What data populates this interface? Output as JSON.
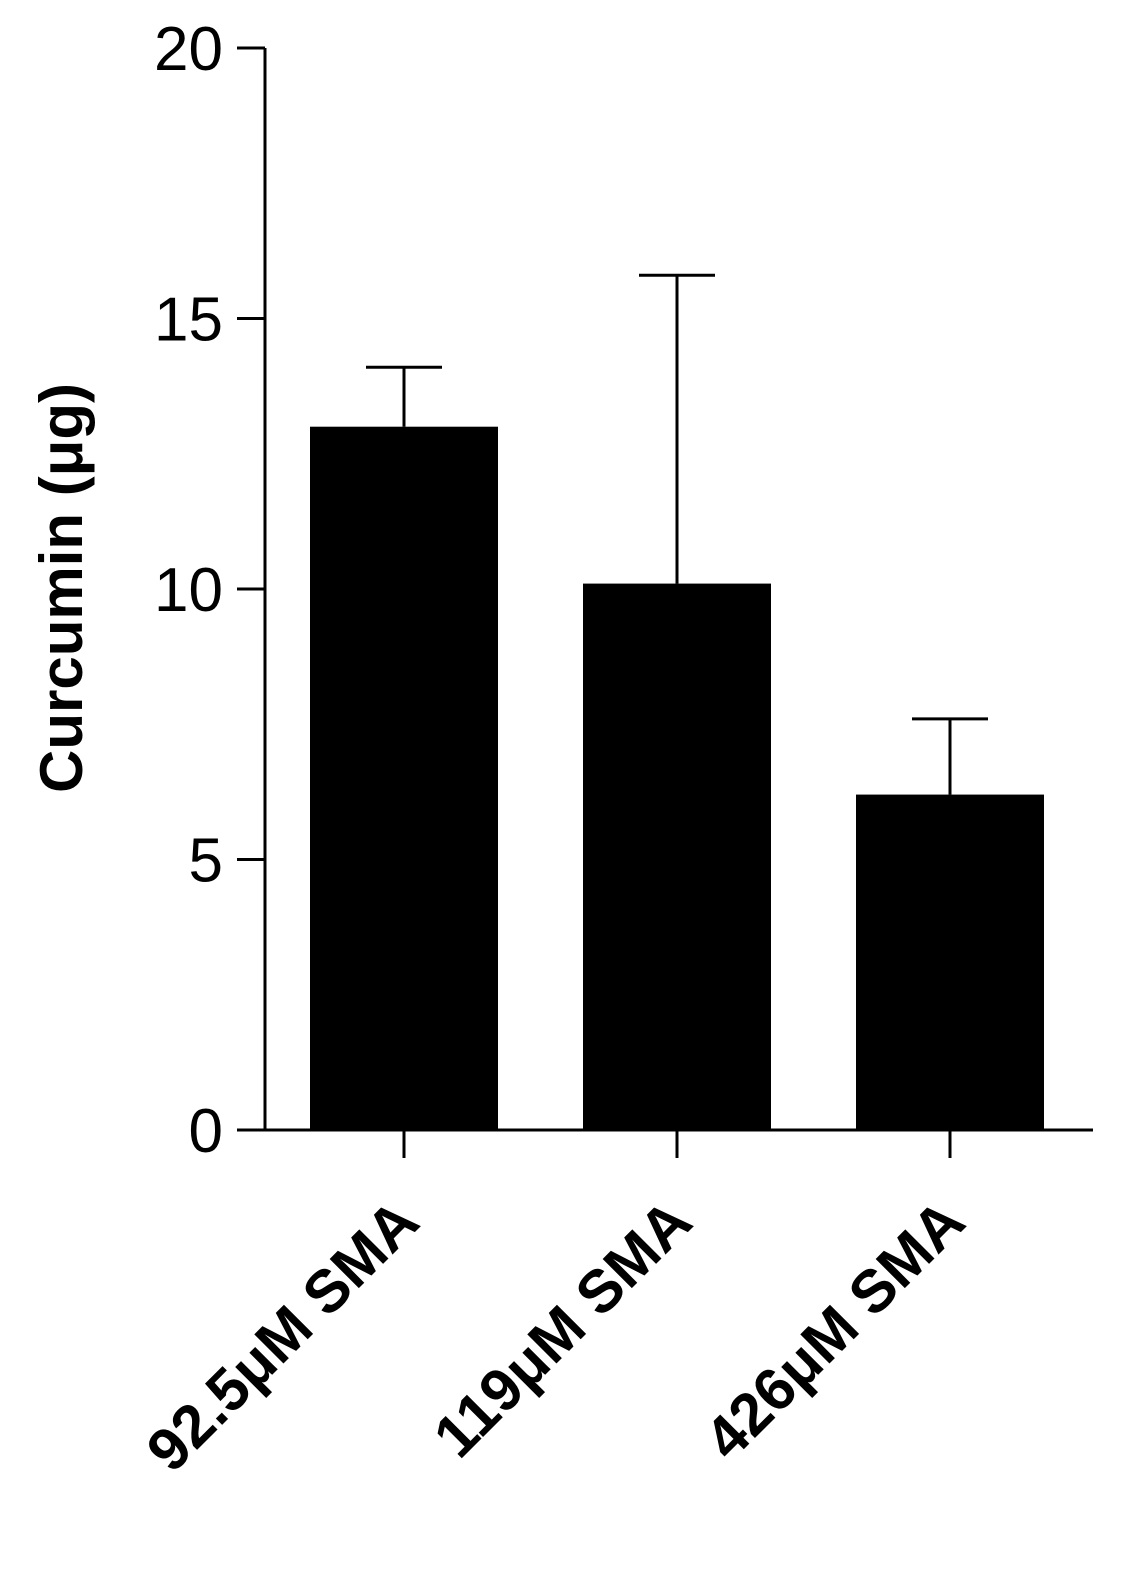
{
  "chart_data": {
    "type": "bar",
    "categories": [
      "92.5μM SMA",
      "119μM SMA",
      "426μM SMA"
    ],
    "values": [
      13.0,
      10.1,
      6.2
    ],
    "error_upper": [
      14.1,
      15.8,
      7.6
    ],
    "ylabel": "Curcumin (μg)",
    "xlabel": "",
    "ylim": [
      0,
      20
    ],
    "yticks": [
      "0",
      "5",
      "10",
      "15",
      "20"
    ],
    "bar_color": "#000000",
    "grid": false,
    "legend": "none"
  }
}
